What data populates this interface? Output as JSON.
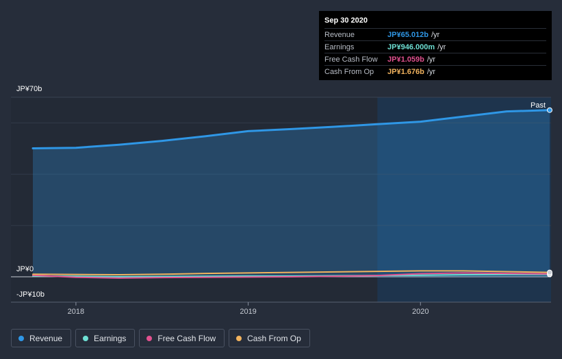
{
  "tooltip": {
    "date": "Sep 30 2020",
    "rows": [
      {
        "label": "Revenue",
        "value": "JP¥65.012b",
        "unit": "/yr",
        "color": "#2f97e6"
      },
      {
        "label": "Earnings",
        "value": "JP¥946.000m",
        "unit": "/yr",
        "color": "#6ee0d4"
      },
      {
        "label": "Free Cash Flow",
        "value": "JP¥1.059b",
        "unit": "/yr",
        "color": "#e2518f"
      },
      {
        "label": "Cash From Op",
        "value": "JP¥1.676b",
        "unit": "/yr",
        "color": "#f2b35e"
      }
    ]
  },
  "legend": [
    {
      "label": "Revenue",
      "color": "#2f97e6"
    },
    {
      "label": "Earnings",
      "color": "#6ee0d4"
    },
    {
      "label": "Free Cash Flow",
      "color": "#e2518f"
    },
    {
      "label": "Cash From Op",
      "color": "#f2b35e"
    }
  ],
  "chart_data": {
    "type": "area",
    "title": "",
    "xlabel": "",
    "ylabel": "",
    "ylim": [
      -10,
      70
    ],
    "y_tick_labels": [
      {
        "value": 70,
        "label": "JP¥70b"
      },
      {
        "value": 0,
        "label": "JP¥0"
      },
      {
        "value": -10,
        "label": "-JP¥10b"
      }
    ],
    "x_ticks": [
      {
        "value": 2018.0,
        "label": "2018"
      },
      {
        "value": 2019.0,
        "label": "2019"
      },
      {
        "value": 2020.0,
        "label": "2020"
      }
    ],
    "xlim": [
      2017.62,
      2020.75
    ],
    "past_region_start": 2019.75,
    "past_label": "Past",
    "grid": true,
    "series": [
      {
        "name": "Revenue",
        "color": "#2f97e6",
        "fill": true,
        "x": [
          2017.75,
          2018.0,
          2018.25,
          2018.5,
          2018.75,
          2019.0,
          2019.25,
          2019.5,
          2019.75,
          2020.0,
          2020.25,
          2020.5,
          2020.75
        ],
        "y": [
          50.1,
          50.3,
          51.5,
          53.0,
          54.8,
          56.8,
          57.6,
          58.5,
          59.5,
          60.5,
          62.5,
          64.5,
          65.0
        ]
      },
      {
        "name": "Earnings",
        "color": "#6ee0d4",
        "fill": false,
        "x": [
          2017.75,
          2018.0,
          2018.25,
          2018.5,
          2018.75,
          2019.0,
          2019.25,
          2019.5,
          2019.75,
          2020.0,
          2020.25,
          2020.5,
          2020.75
        ],
        "y": [
          0.3,
          0.2,
          0.0,
          0.1,
          0.2,
          0.3,
          0.3,
          0.4,
          0.5,
          0.6,
          0.8,
          0.9,
          0.9
        ]
      },
      {
        "name": "Free Cash Flow",
        "color": "#e2518f",
        "fill": false,
        "x": [
          2017.75,
          2018.0,
          2018.25,
          2018.5,
          2018.75,
          2019.0,
          2019.25,
          2019.5,
          2019.75,
          2020.0,
          2020.25,
          2020.5,
          2020.75
        ],
        "y": [
          0.6,
          -0.2,
          -0.5,
          -0.3,
          -0.2,
          -0.1,
          0.0,
          0.2,
          0.5,
          1.2,
          1.5,
          1.3,
          1.1
        ]
      },
      {
        "name": "Cash From Op",
        "color": "#f2b35e",
        "fill": false,
        "x": [
          2017.75,
          2018.0,
          2018.25,
          2018.5,
          2018.75,
          2019.0,
          2019.25,
          2019.5,
          2019.75,
          2020.0,
          2020.25,
          2020.5,
          2020.75
        ],
        "y": [
          1.0,
          0.9,
          0.8,
          1.0,
          1.3,
          1.5,
          1.7,
          1.9,
          2.1,
          2.3,
          2.3,
          2.0,
          1.7
        ]
      }
    ]
  }
}
